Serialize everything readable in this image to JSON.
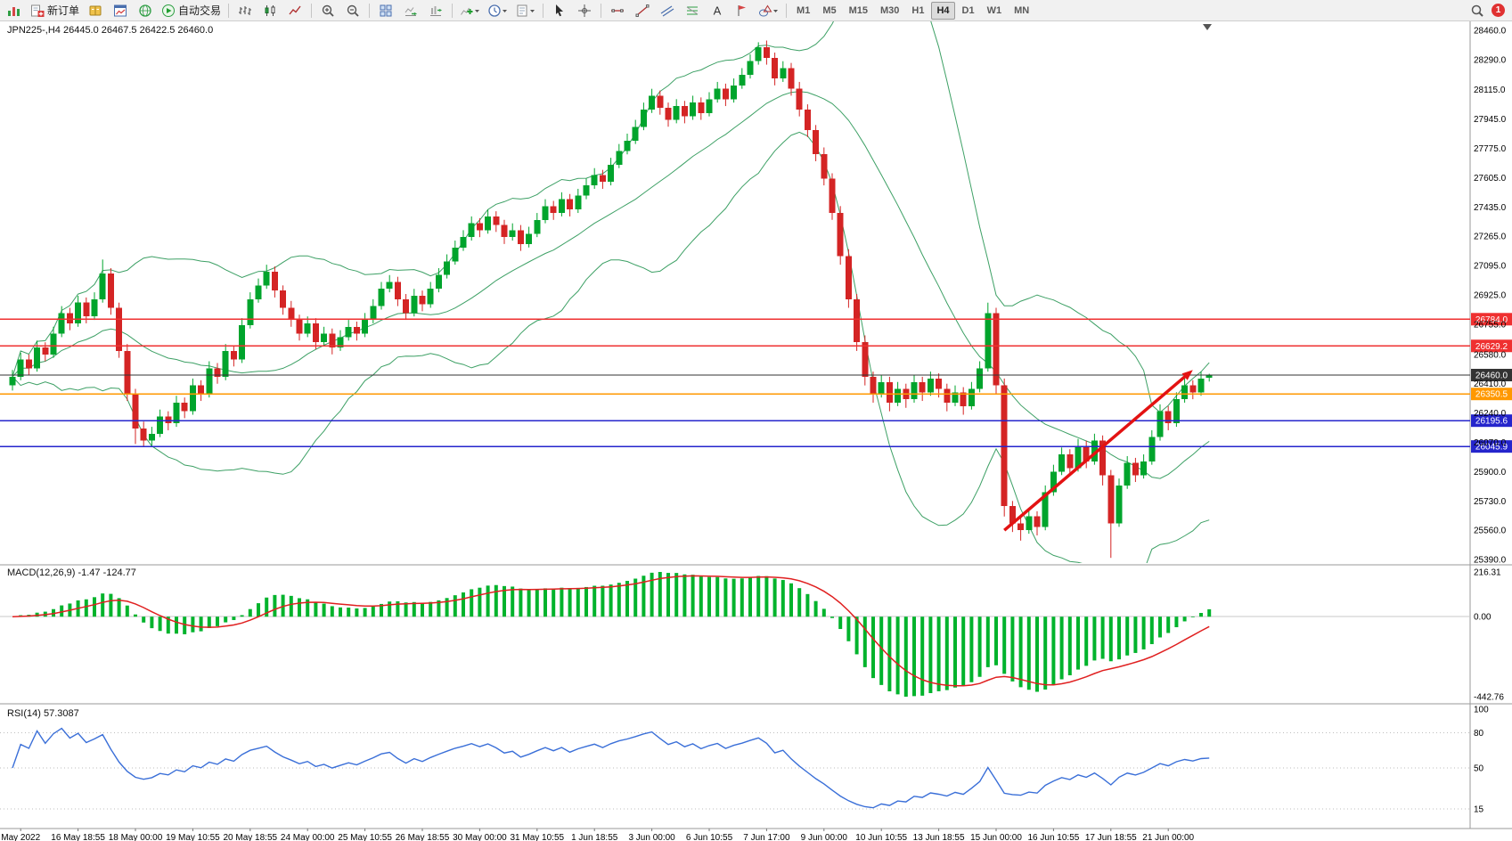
{
  "toolbar": {
    "groups": [
      {
        "items": [
          {
            "name": "chart-fragment",
            "icon": "new-chart"
          },
          {
            "name": "new-order",
            "icon": "new-order",
            "label": "新订单"
          },
          {
            "name": "market-watch",
            "icon": "book"
          },
          {
            "name": "data-window",
            "icon": "chart-window"
          },
          {
            "name": "community",
            "icon": "globe"
          },
          {
            "name": "auto-trading",
            "icon": "play",
            "label": "自动交易"
          }
        ]
      },
      {
        "items": [
          {
            "name": "bar-chart",
            "icon": "bars"
          },
          {
            "name": "candlestick-chart",
            "icon": "candles"
          },
          {
            "name": "line-chart",
            "icon": "linechart"
          }
        ]
      },
      {
        "items": [
          {
            "name": "zoom-in",
            "icon": "zoom-in"
          },
          {
            "name": "zoom-out",
            "icon": "zoom-out"
          }
        ]
      },
      {
        "items": [
          {
            "name": "tile-windows",
            "icon": "tile"
          },
          {
            "name": "auto-scroll",
            "icon": "autoscroll"
          },
          {
            "name": "chart-shift",
            "icon": "shift"
          }
        ]
      },
      {
        "items": [
          {
            "name": "indicators",
            "icon": "indicator",
            "dropdown": true
          },
          {
            "name": "periods",
            "icon": "clock",
            "dropdown": true
          },
          {
            "name": "templates",
            "icon": "template",
            "dropdown": true
          }
        ]
      },
      {
        "items": [
          {
            "name": "cursor",
            "icon": "cursor"
          },
          {
            "name": "crosshair",
            "icon": "crosshair"
          }
        ]
      },
      {
        "items": [
          {
            "name": "horizontal-line",
            "icon": "hline"
          },
          {
            "name": "trend-line",
            "icon": "trendline"
          },
          {
            "name": "equidistant-channel",
            "icon": "channel"
          },
          {
            "name": "fibonacci",
            "icon": "fibo"
          },
          {
            "name": "text-tool",
            "icon": "text"
          },
          {
            "name": "arrow-tool",
            "icon": "flag"
          },
          {
            "name": "shapes",
            "icon": "shapes",
            "dropdown": true
          }
        ]
      }
    ],
    "timeframes": [
      {
        "label": "M1"
      },
      {
        "label": "M5"
      },
      {
        "label": "M15"
      },
      {
        "label": "M30"
      },
      {
        "label": "H1"
      },
      {
        "label": "H4",
        "active": true
      },
      {
        "label": "D1"
      },
      {
        "label": "W1"
      },
      {
        "label": "MN"
      }
    ],
    "right": {
      "badge": "1"
    }
  },
  "chart_data": {
    "type": "candlestick",
    "symbol": "JPN225-",
    "timeframe": "H4",
    "header_line": "JPN225-,H4  26445.0 26467.5 26422.5 26460.0",
    "ohlc_header": {
      "open": "26445.0",
      "high": "26467.5",
      "low": "26422.5",
      "close": "26460.0"
    },
    "ylim": [
      25370,
      28480
    ],
    "colors": {
      "up": "#00a42c",
      "down": "#d42424",
      "bollinger": "#3da065",
      "macd_hist": "#00b32c",
      "macd_signal": "#e02020",
      "rsi_line": "#3a6fd8",
      "arrow": "#e31212"
    },
    "price_axis_ticks": [
      "28460.0",
      "28290.0",
      "28115.0",
      "27945.0",
      "27775.0",
      "27605.0",
      "27435.0",
      "27265.0",
      "27095.0",
      "26925.0",
      "26755.0",
      "26580.0",
      "26410.0",
      "26240.0",
      "26070.0",
      "25900.0",
      "25730.0",
      "25560.0",
      "25390.0"
    ],
    "time_labels": [
      "May 2022",
      "16 May 18:55",
      "18 May 00:00",
      "19 May 10:55",
      "20 May 18:55",
      "24 May 00:00",
      "25 May 10:55",
      "26 May 18:55",
      "30 May 00:00",
      "31 May 10:55",
      "1 Jun 18:55",
      "3 Jun 00:00",
      "6 Jun 10:55",
      "7 Jun 17:00",
      "9 Jun 00:00",
      "10 Jun 10:55",
      "13 Jun 18:55",
      "15 Jun 00:00",
      "16 Jun 10:55",
      "17 Jun 18:55",
      "21 Jun 00:00"
    ],
    "time_label_every_bars": 7,
    "time_label_first_bar": 1,
    "levels": [
      {
        "price": 26784.0,
        "label": "26784.0",
        "color": "#ef3030",
        "width": 1.6
      },
      {
        "price": 26629.2,
        "label": "26629.2",
        "color": "#ef3030",
        "width": 1.6
      },
      {
        "price": 26460.0,
        "label": "26460.0",
        "color": "#333333",
        "width": 1.0,
        "is_current": true
      },
      {
        "price": 26350.5,
        "label": "26350.5",
        "color": "#ff9800",
        "width": 1.6
      },
      {
        "price": 26195.6,
        "label": "26195.6",
        "color": "#2525cc",
        "width": 1.6
      },
      {
        "price": 26045.9,
        "label": "26045.9",
        "color": "#2525cc",
        "width": 1.6
      }
    ],
    "trend_arrow": {
      "from_bar": 121,
      "from_price": 25560,
      "to_bar": 144,
      "to_price": 26490,
      "color": "#e31212"
    },
    "indicators": {
      "bollinger": {
        "period": 20,
        "deviation": 2
      },
      "macd": {
        "label": "MACD(12,26,9) -1.47 -124.77",
        "params": [
          12,
          26,
          9
        ],
        "axis_ticks": [
          "216.31",
          "0.00",
          "-442.76"
        ]
      },
      "rsi": {
        "label": "RSI(14) 57.3087",
        "period": 14,
        "axis_ticks": [
          100,
          80,
          50,
          15
        ],
        "levels": [
          80,
          50,
          15
        ],
        "last_value": "57.3087"
      }
    },
    "candles": [
      [
        26400,
        26490,
        26370,
        26450
      ],
      [
        26450,
        26590,
        26430,
        26550
      ],
      [
        26550,
        26580,
        26460,
        26500
      ],
      [
        26500,
        26660,
        26480,
        26620
      ],
      [
        26620,
        26650,
        26540,
        26580
      ],
      [
        26580,
        26740,
        26560,
        26700
      ],
      [
        26700,
        26860,
        26680,
        26820
      ],
      [
        26820,
        26850,
        26720,
        26760
      ],
      [
        26760,
        26920,
        26740,
        26880
      ],
      [
        26880,
        26910,
        26760,
        26800
      ],
      [
        26800,
        26940,
        26780,
        26900
      ],
      [
        26900,
        27130,
        26880,
        27050
      ],
      [
        27050,
        27080,
        26810,
        26850
      ],
      [
        26850,
        26880,
        26560,
        26600
      ],
      [
        26600,
        26640,
        26310,
        26350
      ],
      [
        26350,
        26380,
        26060,
        26150
      ],
      [
        26150,
        26190,
        26045,
        26080
      ],
      [
        26080,
        26160,
        26050,
        26120
      ],
      [
        26120,
        26260,
        26100,
        26220
      ],
      [
        26220,
        26250,
        26140,
        26180
      ],
      [
        26180,
        26340,
        26160,
        26300
      ],
      [
        26300,
        26330,
        26210,
        26250
      ],
      [
        26250,
        26440,
        26230,
        26400
      ],
      [
        26400,
        26430,
        26310,
        26350
      ],
      [
        26350,
        26540,
        26330,
        26500
      ],
      [
        26500,
        26530,
        26410,
        26450
      ],
      [
        26450,
        26640,
        26430,
        26600
      ],
      [
        26600,
        26630,
        26510,
        26550
      ],
      [
        26550,
        26790,
        26530,
        26750
      ],
      [
        26750,
        26940,
        26730,
        26900
      ],
      [
        26900,
        27020,
        26880,
        26980
      ],
      [
        26980,
        27100,
        26960,
        27060
      ],
      [
        27060,
        27090,
        26910,
        26950
      ],
      [
        26950,
        26980,
        26810,
        26850
      ],
      [
        26850,
        26890,
        26740,
        26780
      ],
      [
        26780,
        26810,
        26660,
        26700
      ],
      [
        26700,
        26800,
        26680,
        26760
      ],
      [
        26760,
        26790,
        26610,
        26650
      ],
      [
        26650,
        26740,
        26630,
        26700
      ],
      [
        26700,
        26730,
        26580,
        26620
      ],
      [
        26620,
        26720,
        26600,
        26680
      ],
      [
        26680,
        26780,
        26660,
        26740
      ],
      [
        26740,
        26770,
        26660,
        26700
      ],
      [
        26700,
        26820,
        26680,
        26780
      ],
      [
        26780,
        26900,
        26760,
        26860
      ],
      [
        26860,
        27000,
        26840,
        26960
      ],
      [
        26960,
        27040,
        26940,
        27000
      ],
      [
        27000,
        27030,
        26860,
        26900
      ],
      [
        26900,
        26930,
        26780,
        26820
      ],
      [
        26820,
        26960,
        26800,
        26920
      ],
      [
        26920,
        26950,
        26830,
        26870
      ],
      [
        26870,
        27000,
        26850,
        26960
      ],
      [
        26960,
        27080,
        26940,
        27040
      ],
      [
        27040,
        27160,
        27020,
        27120
      ],
      [
        27120,
        27240,
        27100,
        27200
      ],
      [
        27200,
        27300,
        27180,
        27260
      ],
      [
        27260,
        27380,
        27240,
        27340
      ],
      [
        27340,
        27370,
        27260,
        27300
      ],
      [
        27300,
        27420,
        27280,
        27380
      ],
      [
        27380,
        27410,
        27290,
        27330
      ],
      [
        27330,
        27360,
        27220,
        27260
      ],
      [
        27260,
        27340,
        27240,
        27300
      ],
      [
        27300,
        27330,
        27180,
        27220
      ],
      [
        27220,
        27320,
        27200,
        27280
      ],
      [
        27280,
        27400,
        27260,
        27360
      ],
      [
        27360,
        27480,
        27340,
        27440
      ],
      [
        27440,
        27470,
        27360,
        27400
      ],
      [
        27400,
        27520,
        27380,
        27480
      ],
      [
        27480,
        27510,
        27380,
        27420
      ],
      [
        27420,
        27540,
        27400,
        27500
      ],
      [
        27500,
        27600,
        27480,
        27560
      ],
      [
        27560,
        27660,
        27540,
        27620
      ],
      [
        27620,
        27650,
        27540,
        27580
      ],
      [
        27580,
        27720,
        27560,
        27680
      ],
      [
        27680,
        27800,
        27660,
        27760
      ],
      [
        27760,
        27860,
        27740,
        27820
      ],
      [
        27820,
        27940,
        27800,
        27900
      ],
      [
        27900,
        28040,
        27880,
        28000
      ],
      [
        28000,
        28120,
        27980,
        28080
      ],
      [
        28080,
        28110,
        27970,
        28010
      ],
      [
        28010,
        28040,
        27900,
        27940
      ],
      [
        27940,
        28060,
        27920,
        28020
      ],
      [
        28020,
        28050,
        27920,
        27960
      ],
      [
        27960,
        28080,
        27940,
        28040
      ],
      [
        28040,
        28070,
        27940,
        27980
      ],
      [
        27980,
        28100,
        27960,
        28060
      ],
      [
        28060,
        28160,
        28040,
        28120
      ],
      [
        28120,
        28150,
        28020,
        28060
      ],
      [
        28060,
        28180,
        28040,
        28140
      ],
      [
        28140,
        28240,
        28120,
        28200
      ],
      [
        28200,
        28320,
        28180,
        28280
      ],
      [
        28280,
        28390,
        28260,
        28360
      ],
      [
        28360,
        28400,
        28260,
        28300
      ],
      [
        28300,
        28330,
        28140,
        28180
      ],
      [
        28180,
        28280,
        28160,
        28240
      ],
      [
        28240,
        28270,
        28080,
        28120
      ],
      [
        28120,
        28160,
        27960,
        28000
      ],
      [
        28000,
        28030,
        27840,
        27880
      ],
      [
        27880,
        27910,
        27700,
        27740
      ],
      [
        27740,
        27780,
        27560,
        27600
      ],
      [
        27600,
        27630,
        27360,
        27400
      ],
      [
        27400,
        27440,
        27100,
        27150
      ],
      [
        27150,
        27190,
        26850,
        26900
      ],
      [
        26900,
        26930,
        26600,
        26650
      ],
      [
        26650,
        26690,
        26400,
        26450
      ],
      [
        26450,
        26480,
        26300,
        26350
      ],
      [
        26350,
        26460,
        26330,
        26420
      ],
      [
        26420,
        26450,
        26250,
        26300
      ],
      [
        26300,
        26420,
        26280,
        26380
      ],
      [
        26380,
        26410,
        26270,
        26320
      ],
      [
        26320,
        26460,
        26300,
        26420
      ],
      [
        26420,
        26450,
        26310,
        26360
      ],
      [
        26360,
        26480,
        26340,
        26440
      ],
      [
        26440,
        26470,
        26330,
        26380
      ],
      [
        26380,
        26410,
        26250,
        26300
      ],
      [
        26300,
        26400,
        26280,
        26360
      ],
      [
        26360,
        26390,
        26230,
        26280
      ],
      [
        26280,
        26420,
        26260,
        26380
      ],
      [
        26380,
        26540,
        26360,
        26500
      ],
      [
        26500,
        26880,
        26480,
        26820
      ],
      [
        26820,
        26850,
        26350,
        26400
      ],
      [
        26400,
        26440,
        25640,
        25700
      ],
      [
        25700,
        25730,
        25550,
        25600
      ],
      [
        25600,
        25640,
        25500,
        25560
      ],
      [
        25560,
        25680,
        25540,
        25640
      ],
      [
        25640,
        25670,
        25530,
        25580
      ],
      [
        25580,
        25820,
        25560,
        25780
      ],
      [
        25780,
        25940,
        25760,
        25900
      ],
      [
        25900,
        26040,
        25880,
        26000
      ],
      [
        26000,
        26030,
        25880,
        25920
      ],
      [
        25920,
        26090,
        25900,
        26050
      ],
      [
        26050,
        26080,
        25920,
        25960
      ],
      [
        25960,
        26120,
        25940,
        26080
      ],
      [
        26080,
        26110,
        25820,
        25880
      ],
      [
        25880,
        25910,
        25400,
        25600
      ],
      [
        25600,
        25860,
        25580,
        25820
      ],
      [
        25820,
        25990,
        25800,
        25950
      ],
      [
        25950,
        25980,
        25840,
        25880
      ],
      [
        25880,
        26000,
        25860,
        25960
      ],
      [
        25960,
        26140,
        25940,
        26100
      ],
      [
        26100,
        26290,
        26080,
        26250
      ],
      [
        26250,
        26280,
        26140,
        26180
      ],
      [
        26180,
        26360,
        26160,
        26320
      ],
      [
        26320,
        26440,
        26300,
        26400
      ],
      [
        26400,
        26430,
        26320,
        26360
      ],
      [
        26360,
        26480,
        26340,
        26440
      ],
      [
        26445,
        26467.5,
        26422.5,
        26460
      ]
    ]
  }
}
